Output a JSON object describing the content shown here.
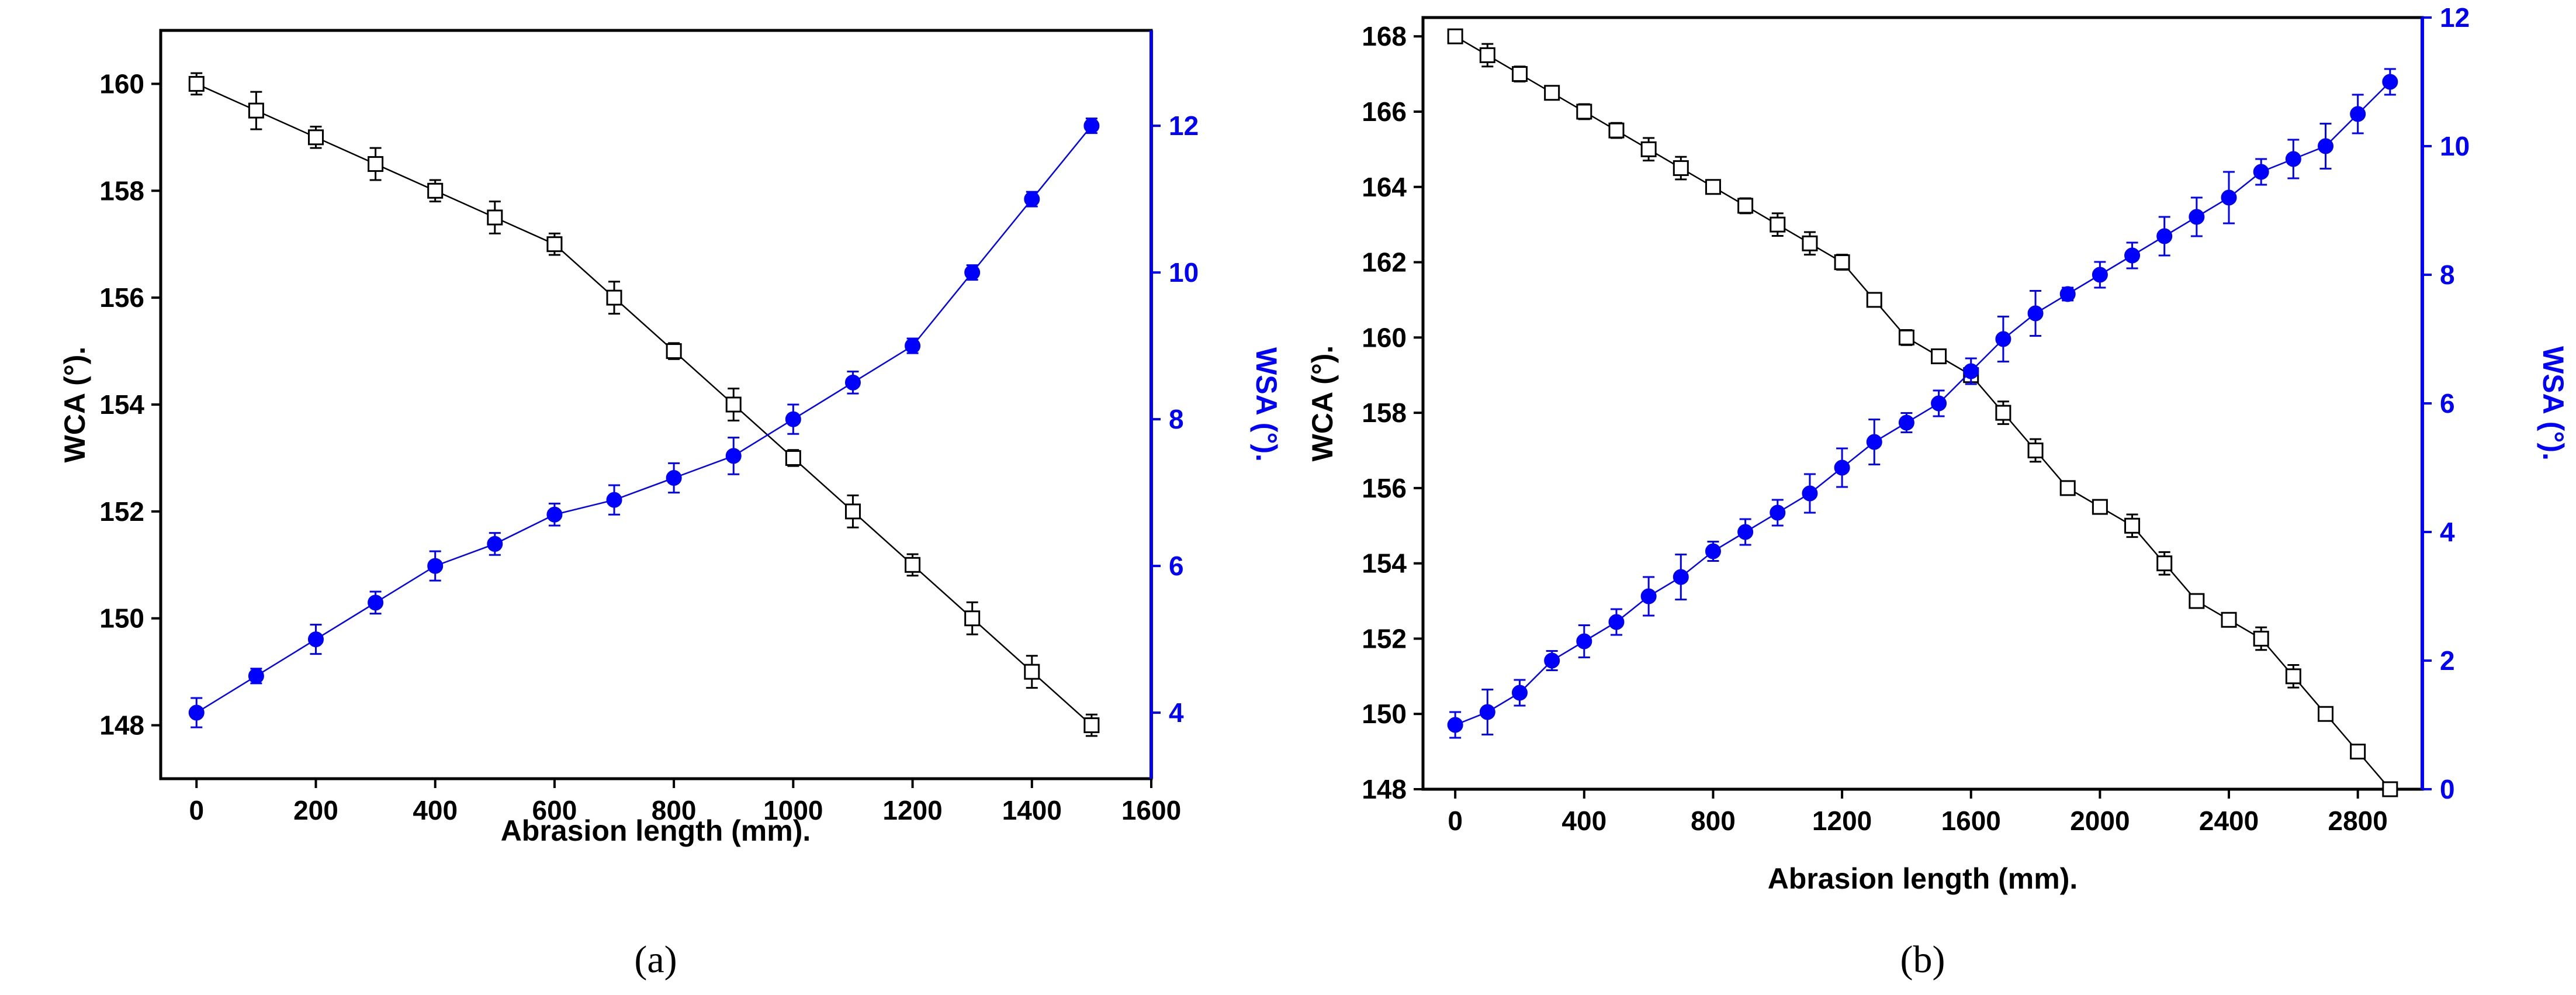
{
  "colors": {
    "wca": "#000000",
    "wsa": "#0000ff"
  },
  "chart_data": [
    {
      "type": "line",
      "panel_label": "(a)",
      "xlabel": "Abrasion length (mm).",
      "ylabel_left": "WCA (°).",
      "ylabel_right": "WSA (°).",
      "xlim": [
        -60,
        1600
      ],
      "xticks": [
        0,
        200,
        400,
        600,
        800,
        1000,
        1200,
        1400,
        1600
      ],
      "ylim_left": [
        147,
        161
      ],
      "yticks_left": [
        148,
        150,
        152,
        154,
        156,
        158,
        160
      ],
      "ylim_right": [
        3.1,
        13.3
      ],
      "yticks_right": [
        4,
        6,
        8,
        10,
        12
      ],
      "series": [
        {
          "name": "WCA",
          "axis": "left",
          "marker": "open-square",
          "x": [
            0,
            100,
            200,
            300,
            400,
            500,
            600,
            700,
            800,
            900,
            1000,
            1100,
            1200,
            1300,
            1400,
            1500
          ],
          "values": [
            160,
            159.5,
            159,
            158.5,
            158,
            157.5,
            157,
            156,
            155,
            154,
            153,
            152,
            151,
            150,
            149,
            148
          ],
          "errors": [
            0.2,
            0.35,
            0.2,
            0.3,
            0.2,
            0.3,
            0.2,
            0.3,
            0.15,
            0.3,
            0.15,
            0.3,
            0.2,
            0.3,
            0.3,
            0.2
          ]
        },
        {
          "name": "WSA",
          "axis": "right",
          "marker": "filled-circle",
          "x": [
            0,
            100,
            200,
            300,
            400,
            500,
            600,
            700,
            800,
            900,
            1000,
            1100,
            1200,
            1300,
            1400,
            1500
          ],
          "values": [
            4,
            4.5,
            5,
            5.5,
            6,
            6.3,
            6.7,
            6.9,
            7.2,
            7.5,
            8,
            8.5,
            9,
            10,
            11,
            12
          ],
          "errors": [
            0.2,
            0.1,
            0.2,
            0.15,
            0.2,
            0.15,
            0.15,
            0.2,
            0.2,
            0.25,
            0.2,
            0.15,
            0.1,
            0.1,
            0.1,
            0.1
          ]
        }
      ]
    },
    {
      "type": "line",
      "panel_label": "(b)",
      "xlabel": "Abrasion length (mm).",
      "ylabel_left": "WCA (°).",
      "ylabel_right": "WSA (°).",
      "xlim": [
        -100,
        3000
      ],
      "xticks": [
        0,
        400,
        800,
        1200,
        1600,
        2000,
        2400,
        2800
      ],
      "ylim_left": [
        148,
        168.5
      ],
      "yticks_left": [
        148,
        150,
        152,
        154,
        156,
        158,
        160,
        162,
        164,
        166,
        168
      ],
      "ylim_right": [
        0,
        12
      ],
      "yticks_right": [
        0,
        2,
        4,
        6,
        8,
        10,
        12
      ],
      "series": [
        {
          "name": "WCA",
          "axis": "left",
          "marker": "open-square",
          "x": [
            0,
            100,
            200,
            300,
            400,
            500,
            600,
            700,
            800,
            900,
            1000,
            1100,
            1200,
            1300,
            1400,
            1500,
            1600,
            1700,
            1800,
            1900,
            2000,
            2100,
            2200,
            2300,
            2400,
            2500,
            2600,
            2700,
            2800,
            2900
          ],
          "values": [
            168,
            167.5,
            167,
            166.5,
            166,
            165.5,
            165,
            164.5,
            164,
            163.5,
            163,
            162.5,
            162,
            161,
            160,
            159.5,
            159,
            158,
            157,
            156,
            155.5,
            155,
            154,
            153,
            152.5,
            152,
            151,
            150,
            149,
            148
          ],
          "errors": [
            0.1,
            0.3,
            0.2,
            0.1,
            0.2,
            0.2,
            0.3,
            0.3,
            0.1,
            0.2,
            0.3,
            0.3,
            0.2,
            0.1,
            0.2,
            0.1,
            0.1,
            0.3,
            0.3,
            0.1,
            0.1,
            0.3,
            0.3,
            0.1,
            0.1,
            0.3,
            0.3,
            0.1,
            0.1,
            0.1
          ]
        },
        {
          "name": "WSA",
          "axis": "right",
          "marker": "filled-circle",
          "x": [
            0,
            100,
            200,
            300,
            400,
            500,
            600,
            700,
            800,
            900,
            1000,
            1100,
            1200,
            1300,
            1400,
            1500,
            1600,
            1700,
            1800,
            1900,
            2000,
            2100,
            2200,
            2300,
            2400,
            2500,
            2600,
            2700,
            2800,
            2900
          ],
          "values": [
            1,
            1.2,
            1.5,
            2,
            2.3,
            2.6,
            3,
            3.3,
            3.7,
            4,
            4.3,
            4.6,
            5,
            5.4,
            5.7,
            6,
            6.5,
            7,
            7.4,
            7.7,
            8,
            8.3,
            8.6,
            8.9,
            9.2,
            9.6,
            9.8,
            10,
            10.5,
            11
          ],
          "errors": [
            0.2,
            0.35,
            0.2,
            0.15,
            0.25,
            0.2,
            0.3,
            0.35,
            0.15,
            0.2,
            0.2,
            0.3,
            0.3,
            0.35,
            0.15,
            0.2,
            0.2,
            0.35,
            0.35,
            0.1,
            0.2,
            0.2,
            0.3,
            0.3,
            0.4,
            0.2,
            0.3,
            0.35,
            0.3,
            0.2
          ]
        }
      ]
    }
  ]
}
